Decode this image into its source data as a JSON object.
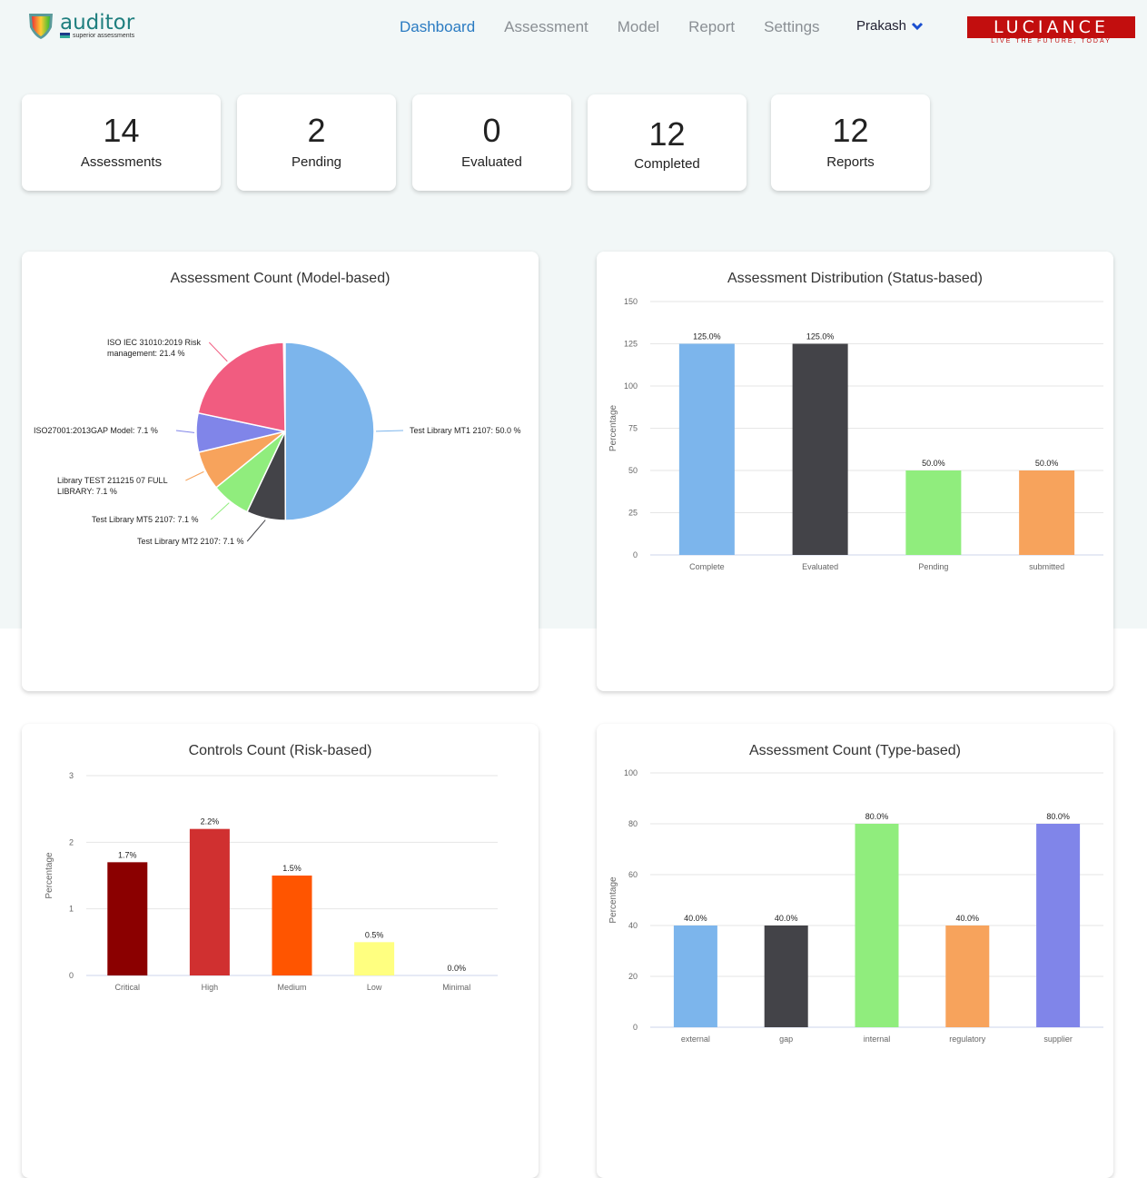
{
  "header": {
    "logo_name": "auditor",
    "logo_tagline": "superior assessments",
    "nav": [
      "Dashboard",
      "Assessment",
      "Model",
      "Report",
      "Settings"
    ],
    "active": "Dashboard",
    "user": "Prakash",
    "brand": "LUCIANCE",
    "brand_tagline": "LIVE THE FUTURE, TODAY"
  },
  "stats": [
    {
      "value": "14",
      "label": "Assessments"
    },
    {
      "value": "2",
      "label": "Pending"
    },
    {
      "value": "0",
      "label": "Evaluated"
    },
    {
      "value": "12",
      "label": "Completed"
    },
    {
      "value": "12",
      "label": "Reports"
    }
  ],
  "colors": {
    "accent": "#2a7bc2",
    "brand": "#c20e0e"
  },
  "chart_data": [
    {
      "type": "pie",
      "title": "Assessment Count (Model-based)",
      "slices": [
        {
          "label": "Test Library MT1 2107: 50.0 %",
          "value": 50.0,
          "color": "#7cb5ec"
        },
        {
          "label": "Test Library MT2 2107: 7.1 %",
          "value": 7.1,
          "color": "#434348"
        },
        {
          "label": "Test Library MT5 2107: 7.1 %",
          "value": 7.1,
          "color": "#90ed7d"
        },
        {
          "label": "Library TEST 211215 07 FULL LIBRARY: 7.1 %",
          "value": 7.1,
          "color": "#f7a35c"
        },
        {
          "label": "ISO27001:2013GAP Model: 7.1 %",
          "value": 7.1,
          "color": "#8085e9"
        },
        {
          "label": "ISO IEC 31010:2019 Risk management: 21.4 %",
          "value": 21.4,
          "color": "#f15c80"
        }
      ]
    },
    {
      "type": "bar",
      "title": "Assessment Distribution (Status-based)",
      "ylabel": "Percentage",
      "ylim": [
        0,
        150
      ],
      "yticks": [
        0,
        25,
        50,
        75,
        100,
        125,
        150
      ],
      "categories": [
        "Complete",
        "Evaluated",
        "Pending",
        "submitted"
      ],
      "values": [
        125,
        125,
        50,
        50
      ],
      "labels": [
        "125.0%",
        "125.0%",
        "50.0%",
        "50.0%"
      ],
      "colors": [
        "#7cb5ec",
        "#434348",
        "#90ed7d",
        "#f7a35c"
      ]
    },
    {
      "type": "bar",
      "title": "Controls Count (Risk-based)",
      "ylabel": "Percentage",
      "ylim": [
        0,
        3
      ],
      "yticks": [
        0,
        1,
        2,
        3
      ],
      "categories": [
        "Critical",
        "High",
        "Medium",
        "Low",
        "Minimal"
      ],
      "values": [
        1.7,
        2.2,
        1.5,
        0.5,
        0
      ],
      "labels": [
        "1.7%",
        "2.2%",
        "1.5%",
        "0.5%",
        "0.0%"
      ],
      "colors": [
        "#8b0000",
        "#d03030",
        "#ff5500",
        "#ffff80",
        "#cccccc"
      ]
    },
    {
      "type": "bar",
      "title": "Assessment Count (Type-based)",
      "ylabel": "Percentage",
      "ylim": [
        0,
        100
      ],
      "yticks": [
        0,
        20,
        40,
        60,
        80,
        100
      ],
      "categories": [
        "external",
        "gap",
        "internal",
        "regulatory",
        "supplier"
      ],
      "values": [
        40,
        40,
        80,
        40,
        80
      ],
      "labels": [
        "40.0%",
        "40.0%",
        "80.0%",
        "40.0%",
        "80.0%"
      ],
      "colors": [
        "#7cb5ec",
        "#434348",
        "#90ed7d",
        "#f7a35c",
        "#8085e9"
      ]
    }
  ]
}
